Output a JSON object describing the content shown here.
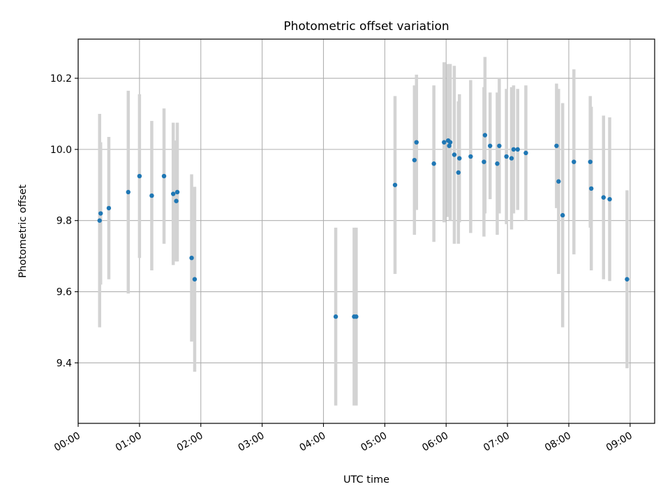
{
  "chart_data": {
    "type": "scatter",
    "title": "Photometric offset variation",
    "xlabel": "UTC time",
    "ylabel": "Photometric offset",
    "grid": true,
    "x_unit": "hours (UTC)",
    "xlim": [
      "00:00",
      "09:24"
    ],
    "ylim": [
      9.23,
      10.31
    ],
    "x_ticks": [
      "00:00",
      "01:00",
      "02:00",
      "03:00",
      "04:00",
      "05:00",
      "06:00",
      "07:00",
      "08:00",
      "09:00"
    ],
    "y_ticks": [
      "9.4",
      "9.6",
      "9.8",
      "10.0",
      "10.2"
    ],
    "colors": {
      "points": "#1f77b4",
      "error_bars": "#d3d3d3",
      "grid": "#b0b0b0"
    },
    "series": [
      {
        "x": [
          "00:21",
          "00:22",
          "00:30",
          "00:49",
          "01:00",
          "01:12",
          "01:24",
          "01:33",
          "01:36",
          "01:37",
          "01:51",
          "01:54",
          "04:12",
          "04:30",
          "04:32",
          "05:10",
          "05:29",
          "05:31",
          "05:48",
          "05:58",
          "06:02",
          "06:03",
          "06:04",
          "06:08",
          "06:12",
          "06:13",
          "06:24",
          "06:37",
          "06:38",
          "06:43",
          "06:50",
          "06:52",
          "06:59",
          "07:04",
          "07:06",
          "07:10",
          "07:18",
          "07:48",
          "07:50",
          "07:54",
          "08:05",
          "08:21",
          "08:22",
          "08:34",
          "08:40",
          "08:57"
        ],
        "y": [
          9.8,
          9.82,
          9.835,
          9.88,
          9.925,
          9.87,
          9.925,
          9.875,
          9.855,
          9.88,
          9.695,
          9.635,
          9.53,
          9.53,
          9.53,
          9.9,
          9.97,
          10.02,
          9.96,
          10.02,
          10.025,
          10.01,
          10.02,
          9.985,
          9.935,
          9.975,
          9.98,
          9.965,
          10.04,
          10.01,
          9.96,
          10.01,
          9.98,
          9.975,
          10.0,
          10.0,
          9.99,
          10.01,
          9.91,
          9.815,
          9.965,
          9.965,
          9.89,
          9.865,
          9.86,
          9.635
        ],
        "err": [
          0.3,
          0.2,
          0.2,
          0.285,
          0.23,
          0.21,
          0.19,
          0.2,
          0.17,
          0.195,
          0.235,
          0.26,
          0.25,
          0.25,
          0.25,
          0.25,
          0.21,
          0.19,
          0.22,
          0.225,
          0.215,
          0.19,
          0.22,
          0.25,
          0.2,
          0.18,
          0.215,
          0.21,
          0.22,
          0.15,
          0.2,
          0.19,
          0.19,
          0.2,
          0.18,
          0.17,
          0.19,
          0.175,
          0.26,
          0.315,
          0.26,
          0.185,
          0.23,
          0.23,
          0.23,
          0.25
        ]
      }
    ]
  }
}
